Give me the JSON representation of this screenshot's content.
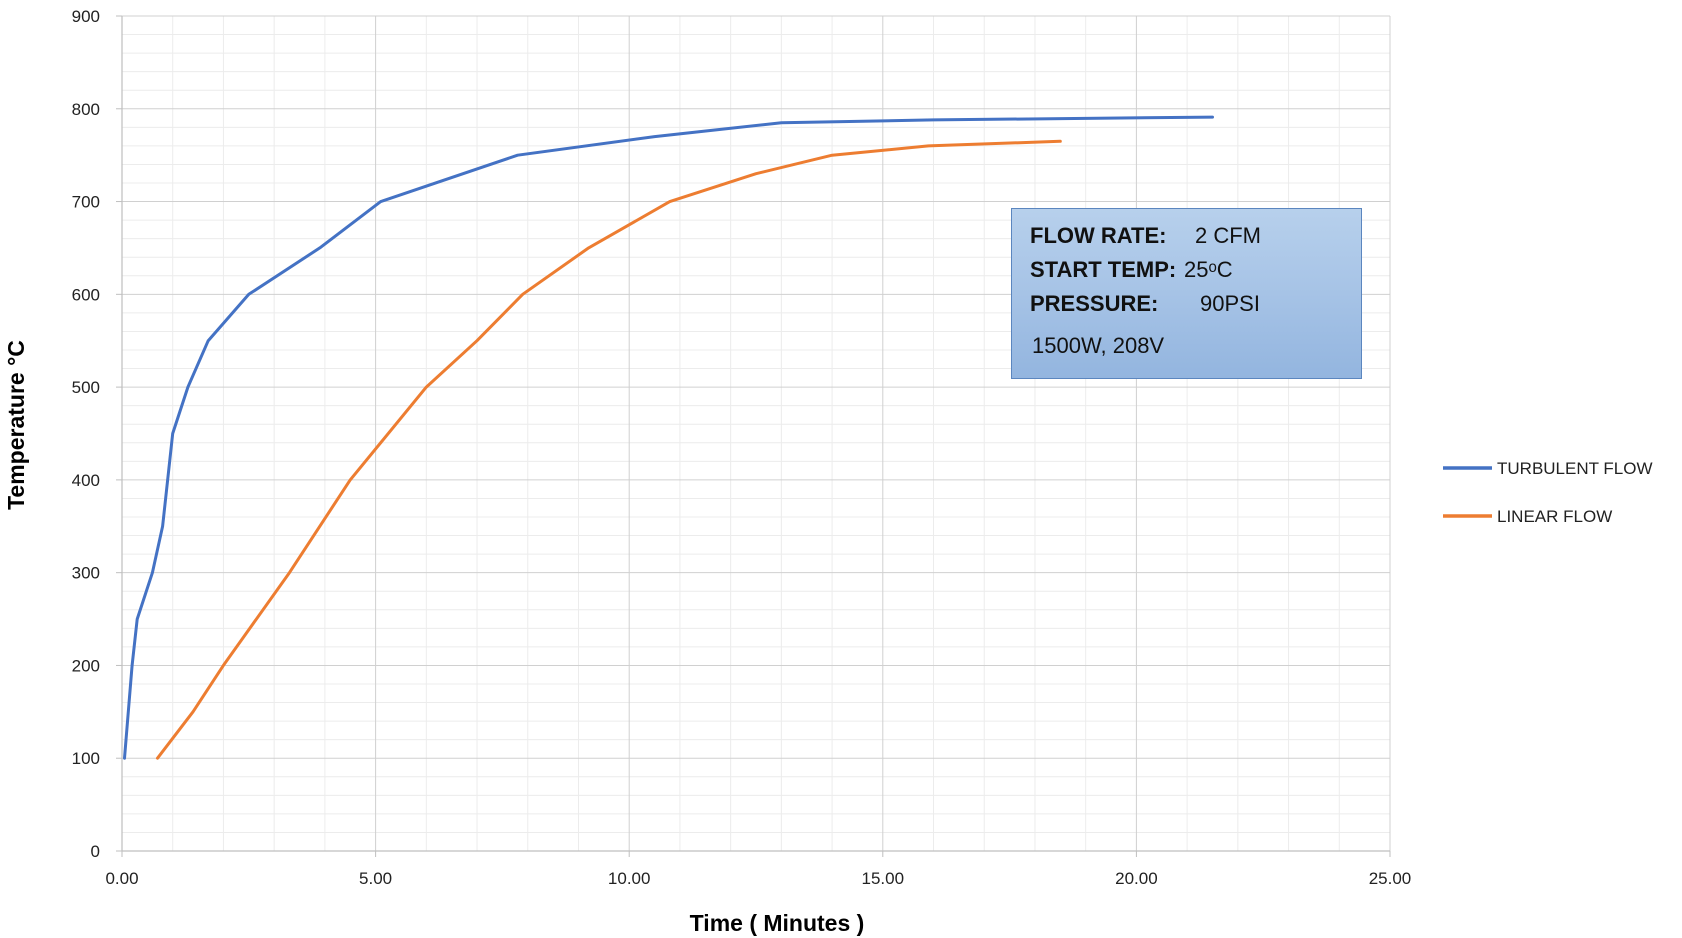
{
  "chart_data": {
    "type": "line",
    "xlabel": "Time ( Minutes )",
    "ylabel": "Temperature °C",
    "xlim": [
      0,
      25
    ],
    "ylim": [
      0,
      900
    ],
    "x_ticks": [
      "0.00",
      "5.00",
      "10.00",
      "15.00",
      "20.00",
      "25.00"
    ],
    "y_ticks": [
      "0",
      "100",
      "200",
      "300",
      "400",
      "500",
      "600",
      "700",
      "800",
      "900"
    ],
    "grid": "major and minor, both axes",
    "legend_position": "right",
    "series": [
      {
        "name": "TURBULENT FLOW",
        "color": "#4472c4",
        "points": [
          [
            0.05,
            100
          ],
          [
            0.2,
            200
          ],
          [
            0.3,
            250
          ],
          [
            0.6,
            300
          ],
          [
            0.8,
            350
          ],
          [
            1.0,
            450
          ],
          [
            1.3,
            500
          ],
          [
            1.7,
            550
          ],
          [
            2.5,
            600
          ],
          [
            3.9,
            650
          ],
          [
            5.1,
            700
          ],
          [
            7.8,
            750
          ],
          [
            10.5,
            770
          ],
          [
            13.0,
            785
          ],
          [
            16.0,
            788
          ],
          [
            21.5,
            791
          ]
        ]
      },
      {
        "name": "LINEAR FLOW",
        "color": "#ed7d31",
        "points": [
          [
            0.7,
            100
          ],
          [
            1.4,
            150
          ],
          [
            2.0,
            200
          ],
          [
            3.3,
            300
          ],
          [
            4.5,
            400
          ],
          [
            6.0,
            500
          ],
          [
            7.0,
            550
          ],
          [
            7.9,
            600
          ],
          [
            9.2,
            650
          ],
          [
            10.8,
            700
          ],
          [
            12.5,
            730
          ],
          [
            14.0,
            750
          ],
          [
            15.9,
            760
          ],
          [
            18.5,
            765
          ]
        ]
      }
    ],
    "annotation": {
      "lines": [
        {
          "key": "FLOW RATE:",
          "value": "2 CFM"
        },
        {
          "key": "START TEMP:",
          "value": "25ᵒC"
        },
        {
          "key": "PRESSURE:",
          "value": "90PSI"
        },
        {
          "key": "",
          "value": "1500W, 208V"
        }
      ]
    }
  }
}
